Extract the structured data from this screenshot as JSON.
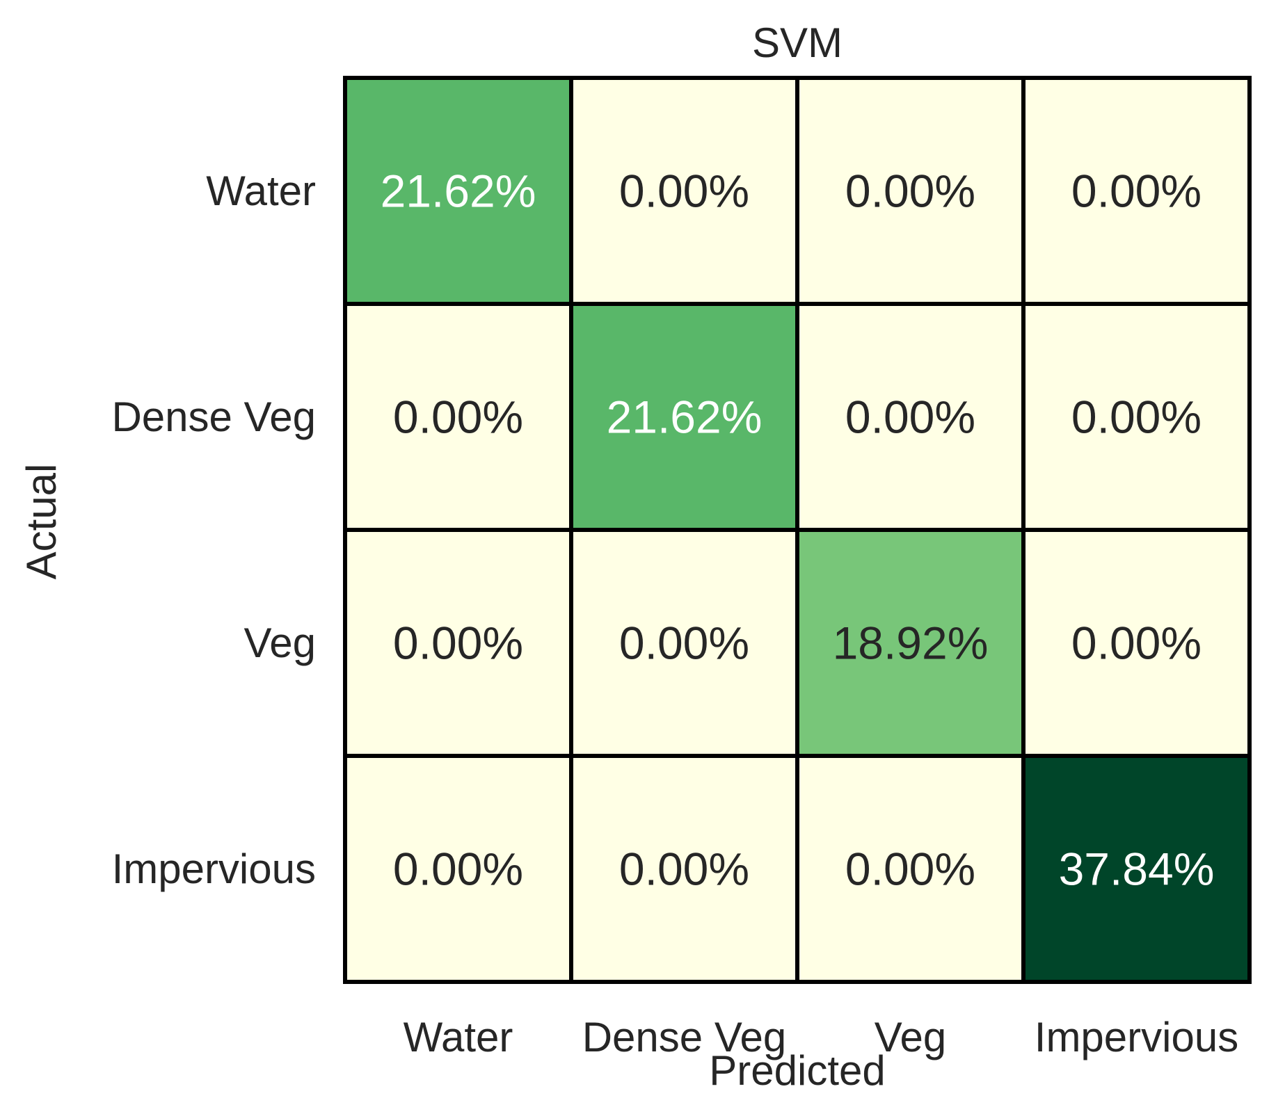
{
  "chart_data": {
    "type": "heatmap",
    "title": "SVM",
    "xlabel": "Predicted",
    "ylabel": "Actual",
    "x_categories": [
      "Water",
      "Dense Veg",
      "Veg",
      "Impervious"
    ],
    "y_categories": [
      "Water",
      "Dense Veg",
      "Veg",
      "Impervious"
    ],
    "values": [
      [
        21.62,
        0.0,
        0.0,
        0.0
      ],
      [
        0.0,
        21.62,
        0.0,
        0.0
      ],
      [
        0.0,
        0.0,
        18.92,
        0.0
      ],
      [
        0.0,
        0.0,
        0.0,
        37.84
      ]
    ],
    "cell_labels": [
      [
        "21.62%",
        "0.00%",
        "0.00%",
        "0.00%"
      ],
      [
        "0.00%",
        "21.62%",
        "0.00%",
        "0.00%"
      ],
      [
        "0.00%",
        "0.00%",
        "18.92%",
        "0.00%"
      ],
      [
        "0.00%",
        "0.00%",
        "0.00%",
        "37.84%"
      ]
    ],
    "colormap": "YlGn",
    "color_range": [
      0,
      37.84
    ],
    "colorbar": false,
    "grid": true,
    "line_color": "#000000"
  }
}
